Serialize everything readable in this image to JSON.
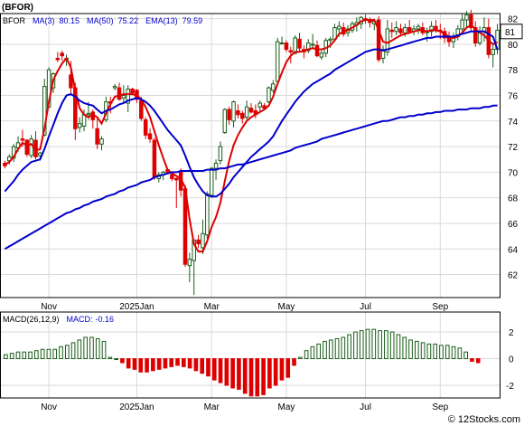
{
  "title": "(BFOR)",
  "footer": "© 12Stocks.com",
  "chart_data": [
    {
      "type": "candlestick",
      "panel": "price",
      "legend_placement": "top-left",
      "legend": [
        {
          "name": "BFOR",
          "value": "",
          "color": "#000000"
        },
        {
          "name": "MA(3)",
          "value": "80.15",
          "color": "#0000cc"
        },
        {
          "name": "MA(50)",
          "value": "75.22",
          "color": "#0000cc"
        },
        {
          "name": "EMA(13)",
          "value": "79.59",
          "color": "#0000cc"
        }
      ],
      "last_price_label": "81",
      "y_ticks": [
        62,
        64,
        66,
        68,
        70,
        72,
        74,
        76,
        78,
        80,
        82
      ],
      "ylim": [
        60.2,
        82.4
      ],
      "x_ticks": [
        "Nov",
        "2025Jan",
        "Mar",
        "May",
        "Jul",
        "Sep"
      ],
      "x_tick_index": [
        10,
        30,
        47,
        64,
        82,
        99
      ],
      "grid": true,
      "colors": {
        "up": "#1a5c1a",
        "up_fill": "#ffffff",
        "down": "#dd0000",
        "short_ma": "#dd0000",
        "long_ma": "#0000cc"
      },
      "candles": [
        [
          70.7,
          70.9,
          70.3,
          70.5
        ],
        [
          70.9,
          71.4,
          70.6,
          71.2
        ],
        [
          71.1,
          72.2,
          70.8,
          72.0
        ],
        [
          71.9,
          72.8,
          71.6,
          72.3
        ],
        [
          72.6,
          73.3,
          72.0,
          72.5
        ],
        [
          72.5,
          72.6,
          71.2,
          71.4
        ],
        [
          71.3,
          72.9,
          71.1,
          72.6
        ],
        [
          72.5,
          73.2,
          71.0,
          71.2
        ],
        [
          71.3,
          71.6,
          70.9,
          71.5
        ],
        [
          72.9,
          77.3,
          72.8,
          76.7
        ],
        [
          75.1,
          78.2,
          75.0,
          78.0
        ],
        [
          76.6,
          77.8,
          76.2,
          77.7
        ],
        [
          78.9,
          79.4,
          78.6,
          78.8
        ],
        [
          79.3,
          79.5,
          78.7,
          79.1
        ],
        [
          78.9,
          79.2,
          78.3,
          78.9
        ],
        [
          77.6,
          78.7,
          76.1,
          76.6
        ],
        [
          76.6,
          77.0,
          72.5,
          73.4
        ],
        [
          73.5,
          74.3,
          73.1,
          73.8
        ],
        [
          73.6,
          74.9,
          73.2,
          74.5
        ],
        [
          74.5,
          75.5,
          74.1,
          74.6
        ],
        [
          74.7,
          74.9,
          73.4,
          74.1
        ],
        [
          73.4,
          74.2,
          71.8,
          72.2
        ],
        [
          72.2,
          72.8,
          71.7,
          72.6
        ],
        [
          74.1,
          75.9,
          73.9,
          75.5
        ],
        [
          75.5,
          75.9,
          74.6,
          75.4
        ],
        [
          76.6,
          76.9,
          76.4,
          76.7
        ],
        [
          76.6,
          77.0,
          75.6,
          75.7
        ],
        [
          75.8,
          76.8,
          75.4,
          76.0
        ],
        [
          75.4,
          76.8,
          74.7,
          76.5
        ],
        [
          76.5,
          76.6,
          76.1,
          76.2
        ],
        [
          76.4,
          76.5,
          75.4,
          75.7
        ],
        [
          75.6,
          75.9,
          74.0,
          74.2
        ],
        [
          74.1,
          74.3,
          72.6,
          72.9
        ],
        [
          73.0,
          73.4,
          72.3,
          72.6
        ],
        [
          72.5,
          72.7,
          69.4,
          69.6
        ],
        [
          69.5,
          70.0,
          69.2,
          69.8
        ],
        [
          69.8,
          70.1,
          69.4,
          70.0
        ],
        [
          70.2,
          70.3,
          69.9,
          70.0
        ],
        [
          69.8,
          69.9,
          69.3,
          69.5
        ],
        [
          69.5,
          69.6,
          67.2,
          69.4
        ],
        [
          70.0,
          70.3,
          68.1,
          68.6
        ],
        [
          68.7,
          69.0,
          62.6,
          62.8
        ],
        [
          62.7,
          63.7,
          61.4,
          63.2
        ],
        [
          63.1,
          64.7,
          60.4,
          64.7
        ],
        [
          64.7,
          65.1,
          64.1,
          64.4
        ],
        [
          64.1,
          66.3,
          63.6,
          65.2
        ],
        [
          65.1,
          68.5,
          64.8,
          68.3
        ],
        [
          68.2,
          70.4,
          68.0,
          70.3
        ],
        [
          70.3,
          71.0,
          69.4,
          70.7
        ],
        [
          70.9,
          72.4,
          70.6,
          72.0
        ],
        [
          73.1,
          75.0,
          73.0,
          74.9
        ],
        [
          74.9,
          75.1,
          73.7,
          74.1
        ],
        [
          74.0,
          75.6,
          73.5,
          75.5
        ],
        [
          74.8,
          75.3,
          74.2,
          74.5
        ],
        [
          74.6,
          74.8,
          73.8,
          74.2
        ],
        [
          74.3,
          75.6,
          74.1,
          75.1
        ],
        [
          75.0,
          75.4,
          74.6,
          74.7
        ],
        [
          74.8,
          75.3,
          74.2,
          74.5
        ],
        [
          75.1,
          75.6,
          74.7,
          75.4
        ],
        [
          75.2,
          75.4,
          74.9,
          75.0
        ],
        [
          75.5,
          76.7,
          75.4,
          76.6
        ],
        [
          76.4,
          77.2,
          76.2,
          76.9
        ],
        [
          77.1,
          80.5,
          77.0,
          80.2
        ],
        [
          80.1,
          80.6,
          80.0,
          80.1
        ],
        [
          80.1,
          80.3,
          79.4,
          79.6
        ],
        [
          79.5,
          79.8,
          78.5,
          79.4
        ],
        [
          79.3,
          80.7,
          79.2,
          80.5
        ],
        [
          80.4,
          80.9,
          79.4,
          79.7
        ],
        [
          79.6,
          79.9,
          78.9,
          79.4
        ],
        [
          79.5,
          80.4,
          79.3,
          80.1
        ],
        [
          80.0,
          80.8,
          79.6,
          80.0
        ],
        [
          79.9,
          80.3,
          79.0,
          79.1
        ],
        [
          79.0,
          79.5,
          78.8,
          79.3
        ],
        [
          79.3,
          80.5,
          79.0,
          80.3
        ],
        [
          80.3,
          80.6,
          79.7,
          80.4
        ],
        [
          80.4,
          81.6,
          80.2,
          81.3
        ],
        [
          81.2,
          81.8,
          80.6,
          81.4
        ],
        [
          81.3,
          81.7,
          80.6,
          80.8
        ],
        [
          80.9,
          81.5,
          80.6,
          81.2
        ],
        [
          81.1,
          81.8,
          80.9,
          81.6
        ],
        [
          81.5,
          82.1,
          81.0,
          81.7
        ],
        [
          81.6,
          82.2,
          81.2,
          82.1
        ],
        [
          82.0,
          82.3,
          81.6,
          81.9
        ],
        [
          81.9,
          82.1,
          81.3,
          81.7
        ],
        [
          81.6,
          82.0,
          81.1,
          81.8
        ],
        [
          81.9,
          82.2,
          78.6,
          78.8
        ],
        [
          78.9,
          79.9,
          78.5,
          79.6
        ],
        [
          79.4,
          81.9,
          79.1,
          81.2
        ],
        [
          81.1,
          81.7,
          80.5,
          81.0
        ],
        [
          81.0,
          81.8,
          80.7,
          81.3
        ],
        [
          81.2,
          81.6,
          80.6,
          80.9
        ],
        [
          80.9,
          81.6,
          80.6,
          81.3
        ],
        [
          81.3,
          81.9,
          80.8,
          81.0
        ],
        [
          81.0,
          81.5,
          80.7,
          81.2
        ],
        [
          81.2,
          81.6,
          80.8,
          81.4
        ],
        [
          81.3,
          81.7,
          80.7,
          80.9
        ],
        [
          80.9,
          81.3,
          80.2,
          81.0
        ],
        [
          81.0,
          81.8,
          80.6,
          81.4
        ],
        [
          81.4,
          81.9,
          80.9,
          81.1
        ],
        [
          81.1,
          81.6,
          80.4,
          81.0
        ],
        [
          81.0,
          81.3,
          80.1,
          80.5
        ],
        [
          80.5,
          81.0,
          79.8,
          80.2
        ],
        [
          80.2,
          80.9,
          79.7,
          80.6
        ],
        [
          80.6,
          81.5,
          80.3,
          81.2
        ],
        [
          81.2,
          82.4,
          81.0,
          81.9
        ],
        [
          81.9,
          82.6,
          81.3,
          82.3
        ],
        [
          82.3,
          82.7,
          81.0,
          81.3
        ],
        [
          81.3,
          81.8,
          79.8,
          80.1
        ],
        [
          80.1,
          81.4,
          79.9,
          81.0
        ],
        [
          81.0,
          82.1,
          80.2,
          81.3
        ],
        [
          81.3,
          82.0,
          78.9,
          79.2
        ],
        [
          79.2,
          80.1,
          78.2,
          79.6
        ],
        [
          79.6,
          81.6,
          79.2,
          81.1
        ]
      ],
      "series": [
        {
          "name": "MA(3)",
          "color": "#dd0000",
          "values": [
            70.6,
            70.8,
            71.2,
            71.8,
            72.3,
            72.1,
            72.2,
            71.7,
            71.8,
            73.4,
            75.5,
            77.2,
            77.9,
            78.5,
            78.9,
            78.2,
            76.4,
            75.0,
            74.5,
            74.3,
            74.5,
            74.3,
            73.8,
            74.6,
            75.3,
            75.9,
            76.0,
            76.1,
            76.1,
            76.1,
            76.0,
            75.7,
            75.1,
            74.3,
            73.2,
            72.1,
            71.1,
            70.2,
            69.9,
            69.7,
            69.5,
            68.8,
            66.3,
            64.4,
            63.8,
            63.8,
            64.6,
            65.7,
            66.5,
            67.6,
            69.3,
            70.9,
            72.1,
            72.9,
            73.5,
            74.0,
            74.3,
            74.5,
            74.7,
            74.9,
            75.2,
            75.9,
            76.9,
            77.8,
            78.6,
            79.1,
            79.4,
            79.4,
            79.5,
            79.6,
            79.7,
            79.6,
            79.6,
            79.7,
            79.9,
            80.3,
            80.8,
            81.0,
            81.1,
            81.3,
            81.5,
            81.8,
            81.9,
            81.9,
            81.9,
            81.1,
            80.2,
            80.1,
            80.3,
            80.5,
            80.7,
            80.8,
            80.9,
            81.0,
            81.1,
            81.1,
            81.0,
            81.1,
            81.1,
            81.0,
            80.8,
            80.6,
            80.5,
            80.6,
            80.9,
            81.3,
            81.5,
            81.2,
            80.9,
            80.7,
            80.3,
            80.0,
            80.15
          ]
        },
        {
          "name": "EMA(13)",
          "color": "#0000cc",
          "values": [
            68.5,
            68.9,
            69.3,
            69.8,
            70.2,
            70.5,
            70.8,
            70.9,
            71.0,
            71.8,
            72.8,
            73.7,
            74.6,
            75.4,
            76.0,
            76.1,
            75.9,
            75.6,
            75.4,
            75.3,
            75.2,
            74.9,
            74.6,
            74.8,
            74.9,
            75.1,
            75.3,
            75.4,
            75.6,
            75.7,
            75.8,
            75.7,
            75.5,
            75.2,
            74.8,
            74.3,
            73.8,
            73.3,
            72.9,
            72.5,
            72.1,
            71.3,
            70.4,
            69.6,
            69.0,
            68.5,
            68.2,
            68.1,
            68.1,
            68.3,
            68.7,
            69.1,
            69.6,
            70.0,
            70.4,
            70.8,
            71.2,
            71.5,
            71.8,
            72.1,
            72.4,
            72.8,
            73.4,
            74.0,
            74.5,
            75.0,
            75.5,
            75.9,
            76.3,
            76.6,
            76.9,
            77.1,
            77.3,
            77.5,
            77.7,
            78.0,
            78.2,
            78.4,
            78.6,
            78.8,
            79.0,
            79.2,
            79.4,
            79.5,
            79.6,
            79.6,
            79.5,
            79.6,
            79.7,
            79.8,
            79.9,
            80.0,
            80.1,
            80.2,
            80.3,
            80.4,
            80.5,
            80.5,
            80.6,
            80.6,
            80.6,
            80.6,
            80.6,
            80.7,
            80.8,
            80.9,
            81.0,
            81.0,
            81.0,
            81.0,
            80.8,
            80.6,
            79.59
          ]
        },
        {
          "name": "MA(50)",
          "color": "#0000cc",
          "values": [
            64.0,
            64.2,
            64.4,
            64.6,
            64.8,
            65.0,
            65.2,
            65.4,
            65.6,
            65.8,
            66.0,
            66.2,
            66.4,
            66.6,
            66.8,
            66.9,
            67.1,
            67.2,
            67.4,
            67.5,
            67.7,
            67.8,
            67.9,
            68.1,
            68.2,
            68.3,
            68.5,
            68.6,
            68.8,
            68.9,
            69.0,
            69.2,
            69.3,
            69.4,
            69.6,
            69.7,
            69.8,
            69.9,
            70.0,
            70.0,
            70.1,
            70.1,
            70.1,
            70.1,
            70.1,
            70.1,
            70.2,
            70.2,
            70.2,
            70.3,
            70.3,
            70.4,
            70.5,
            70.6,
            70.6,
            70.7,
            70.8,
            70.9,
            71.0,
            71.1,
            71.2,
            71.3,
            71.4,
            71.5,
            71.6,
            71.7,
            71.9,
            72.0,
            72.1,
            72.2,
            72.3,
            72.4,
            72.6,
            72.7,
            72.8,
            72.9,
            73.0,
            73.1,
            73.2,
            73.3,
            73.4,
            73.5,
            73.6,
            73.7,
            73.8,
            73.9,
            74.0,
            74.0,
            74.1,
            74.2,
            74.3,
            74.3,
            74.4,
            74.4,
            74.5,
            74.5,
            74.6,
            74.6,
            74.7,
            74.7,
            74.8,
            74.8,
            74.8,
            74.9,
            74.9,
            74.9,
            75.0,
            75.0,
            75.0,
            75.1,
            75.1,
            75.2,
            75.22
          ]
        }
      ]
    },
    {
      "type": "bar",
      "panel": "macd",
      "legend_placement": "top-left",
      "legend": [
        {
          "name": "MACD(26,12,9)",
          "value": "",
          "color": "#000000"
        },
        {
          "name": "MACD:",
          "value": "-0.16",
          "color": "#0000cc"
        }
      ],
      "y_ticks": [
        -2,
        0,
        2
      ],
      "ylim": [
        -2.95,
        3.5
      ],
      "colors": {
        "positive": "#1a5c1a",
        "negative": "#dd0000"
      },
      "values": [
        0.3,
        0.4,
        0.5,
        0.5,
        0.5,
        0.6,
        0.7,
        0.7,
        0.7,
        0.9,
        1.0,
        1.2,
        1.4,
        1.6,
        1.6,
        1.5,
        1.3,
        0.1,
        0.0,
        -0.3,
        -0.7,
        -0.8,
        -1.0,
        -1.0,
        -0.9,
        -0.8,
        -0.7,
        -0.6,
        -0.5,
        -0.6,
        -0.7,
        -0.9,
        -1.1,
        -1.3,
        -1.6,
        -1.8,
        -2.0,
        -2.2,
        -2.3,
        -2.6,
        -2.8,
        -2.8,
        -2.7,
        -2.2,
        -2.0,
        -1.6,
        -1.4,
        -0.5,
        0.1,
        0.6,
        0.9,
        1.1,
        1.3,
        1.4,
        1.5,
        1.6,
        1.8,
        2.0,
        2.1,
        2.2,
        2.2,
        2.1,
        2.1,
        2.0,
        1.8,
        1.6,
        1.4,
        1.3,
        1.2,
        1.1,
        1.1,
        1.0,
        1.0,
        0.9,
        0.8,
        0.5,
        -0.2,
        -0.3
      ]
    }
  ]
}
